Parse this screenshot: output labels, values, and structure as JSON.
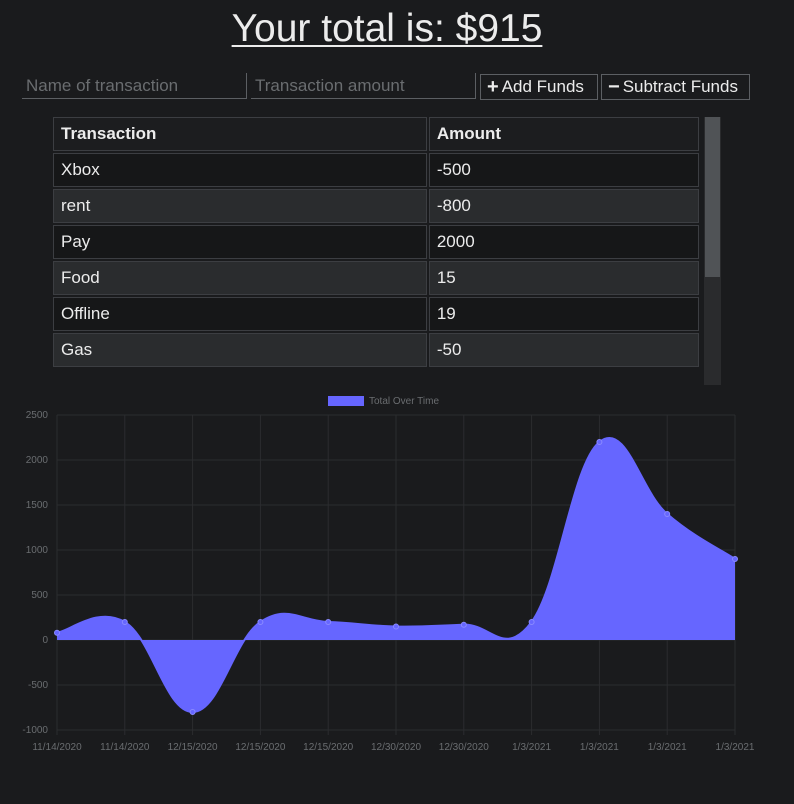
{
  "header": {
    "total_label": "Your total is: $915"
  },
  "form": {
    "name_placeholder": "Name of transaction",
    "amount_placeholder": "Transaction amount",
    "add_label": "Add Funds",
    "subtract_label": "Subtract Funds"
  },
  "table": {
    "headers": [
      "Transaction",
      "Amount"
    ],
    "rows": [
      {
        "name": "Xbox",
        "amount": "-500"
      },
      {
        "name": "rent",
        "amount": "-800"
      },
      {
        "name": "Pay",
        "amount": "2000"
      },
      {
        "name": "Food",
        "amount": "15"
      },
      {
        "name": "Offline",
        "amount": "19"
      },
      {
        "name": "Gas",
        "amount": "-50"
      }
    ]
  },
  "colors": {
    "accent": "#6666ff",
    "background": "#1a1b1d",
    "text": "#ececec"
  },
  "chart_data": {
    "type": "area",
    "legend": "Total Over Time",
    "legend_position": "top-center",
    "x": [
      "11/14/2020",
      "11/14/2020",
      "12/15/2020",
      "12/15/2020",
      "12/15/2020",
      "12/30/2020",
      "12/30/2020",
      "1/3/2021",
      "1/3/2021",
      "1/3/2021",
      "1/3/2021"
    ],
    "series": [
      {
        "name": "Total Over Time",
        "values": [
          80,
          200,
          -800,
          200,
          200,
          150,
          170,
          200,
          2200,
          1400,
          900
        ]
      }
    ],
    "yticks": [
      2500,
      2000,
      1500,
      1000,
      500,
      0,
      -500,
      -1000
    ],
    "ylim": [
      -1000,
      2500
    ],
    "grid": true
  }
}
